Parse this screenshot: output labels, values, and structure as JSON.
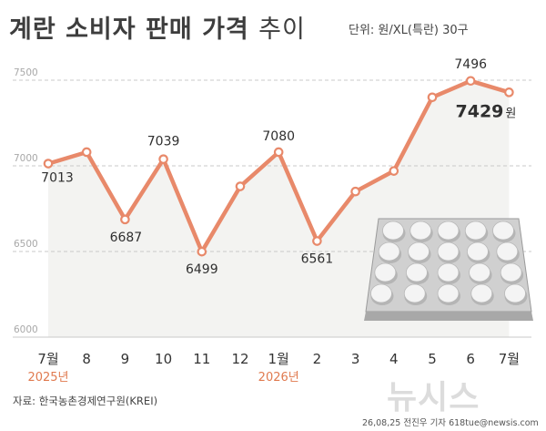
{
  "header": {
    "title_bold": "계란 소비자 판매 가격",
    "title_thin": "추이",
    "unit": "단위: 원/XL(특란) 30구"
  },
  "footer": {
    "source": "자료: 한국농촌경제연구원(KREI)",
    "credit": "26,08,25 전진우 기자 618tue@newsis.com",
    "watermark": "뉴시스"
  },
  "colors": {
    "line": "#e8896a",
    "area": "#f3f3f1",
    "grid": "#c9c9c9",
    "highlight_year": "#e07a4f",
    "text": "#333333"
  },
  "icons": [
    "egg-tray-icon"
  ],
  "chart_data": {
    "type": "line",
    "categories": [
      "7월",
      "8",
      "9",
      "10",
      "11",
      "12",
      "1월",
      "2",
      "3",
      "4",
      "5",
      "6",
      "7월"
    ],
    "year_labels": [
      {
        "index": 0,
        "text": "2025년"
      },
      {
        "index": 6,
        "text": "2026년"
      }
    ],
    "values": [
      7013,
      7080,
      6687,
      7039,
      6499,
      6880,
      7080,
      6561,
      6850,
      6970,
      7400,
      7496,
      7429
    ],
    "data_labels": [
      {
        "index": 0,
        "text": "7013"
      },
      {
        "index": 2,
        "text": "6687"
      },
      {
        "index": 3,
        "text": "7039"
      },
      {
        "index": 4,
        "text": "6499"
      },
      {
        "index": 6,
        "text": "7080"
      },
      {
        "index": 7,
        "text": "6561"
      },
      {
        "index": 11,
        "text": "7496"
      },
      {
        "index": 12,
        "text": "7429",
        "suffix": "원"
      }
    ],
    "yticks": [
      6000,
      6500,
      7000,
      7500
    ],
    "ylim": [
      6000,
      7600
    ],
    "grid": true
  }
}
